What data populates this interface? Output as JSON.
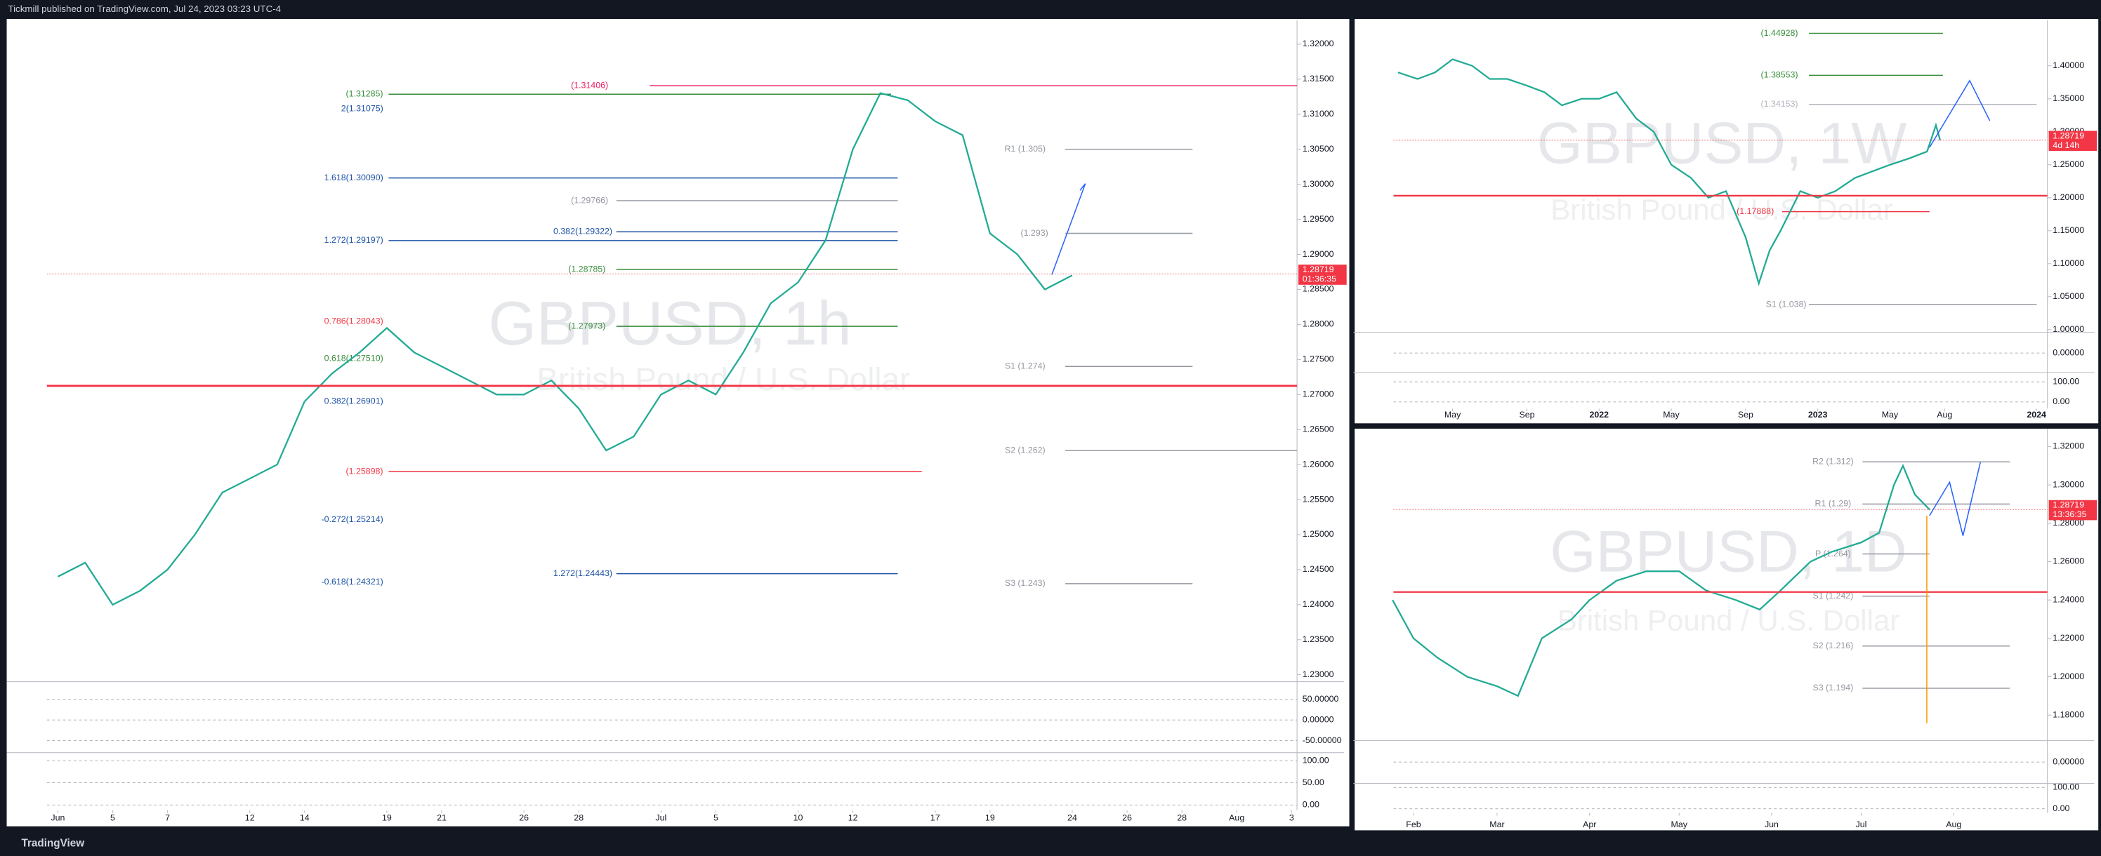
{
  "header": {
    "title": "Tickmill published on TradingView.com, Jul 24, 2023 03:23 UTC-4"
  },
  "footer": {
    "brand": "TradingView"
  },
  "chart_data": [
    {
      "type": "line",
      "title": "GBPUSD, 1h",
      "subtitle": "British Pound / U.S. Dollar",
      "color": "#22ab94",
      "x": [
        0,
        1,
        2,
        3,
        4,
        5,
        6,
        7,
        8,
        9,
        10,
        11,
        12,
        13,
        14,
        15,
        16,
        17,
        18,
        19,
        20,
        21,
        22,
        23,
        24,
        25,
        26,
        27,
        28,
        29,
        30,
        31,
        32,
        33,
        34,
        35,
        36,
        37
      ],
      "values": [
        1.244,
        1.246,
        1.24,
        1.242,
        1.245,
        1.25,
        1.256,
        1.258,
        1.26,
        1.269,
        1.273,
        1.276,
        1.2795,
        1.276,
        1.274,
        1.272,
        1.27,
        1.27,
        1.272,
        1.268,
        1.262,
        1.264,
        1.27,
        1.272,
        1.27,
        1.276,
        1.283,
        1.286,
        1.292,
        1.305,
        1.313,
        1.312,
        1.309,
        1.307,
        1.293,
        1.29,
        1.285,
        1.287
      ],
      "xlim": [
        -0.4,
        45.2
      ],
      "xticks": [
        {
          "value": 0,
          "label": "Jun"
        },
        {
          "value": 2,
          "label": "5"
        },
        {
          "value": 4,
          "label": "7"
        },
        {
          "value": 7,
          "label": "12"
        },
        {
          "value": 9,
          "label": "14"
        },
        {
          "value": 12,
          "label": "19"
        },
        {
          "value": 14,
          "label": "21"
        },
        {
          "value": 17,
          "label": "26"
        },
        {
          "value": 19,
          "label": "28"
        },
        {
          "value": 22,
          "label": "Jul"
        },
        {
          "value": 24,
          "label": "5"
        },
        {
          "value": 27,
          "label": "10"
        },
        {
          "value": 29,
          "label": "12"
        },
        {
          "value": 32,
          "label": "17"
        },
        {
          "value": 34,
          "label": "19"
        },
        {
          "value": 37,
          "label": "24"
        },
        {
          "value": 39,
          "label": "26"
        },
        {
          "value": 41,
          "label": "28"
        },
        {
          "value": 43,
          "label": "Aug"
        },
        {
          "value": 45,
          "label": "3"
        }
      ],
      "ylim": [
        1.2292,
        1.3234
      ],
      "yticks": [
        {
          "value": 1.32,
          "label": "1.32000"
        },
        {
          "value": 1.315,
          "label": "1.31500"
        },
        {
          "value": 1.31,
          "label": "1.31000"
        },
        {
          "value": 1.305,
          "label": "1.30500"
        },
        {
          "value": 1.3,
          "label": "1.30000"
        },
        {
          "value": 1.295,
          "label": "1.29500"
        },
        {
          "value": 1.29,
          "label": "1.29000"
        },
        {
          "value": 1.285,
          "label": "1.28500"
        },
        {
          "value": 1.28,
          "label": "1.28000"
        },
        {
          "value": 1.275,
          "label": "1.27500"
        },
        {
          "value": 1.27,
          "label": "1.27000"
        },
        {
          "value": 1.265,
          "label": "1.26500"
        },
        {
          "value": 1.26,
          "label": "1.26000"
        },
        {
          "value": 1.255,
          "label": "1.25500"
        },
        {
          "value": 1.25,
          "label": "1.25000"
        },
        {
          "value": 1.245,
          "label": "1.24500"
        },
        {
          "value": 1.24,
          "label": "1.24000"
        },
        {
          "value": 1.235,
          "label": "1.23500"
        },
        {
          "value": 1.23,
          "label": "1.23000"
        }
      ],
      "price_label": {
        "value": 1.28719,
        "countdown": "01:36:35"
      },
      "levels": [
        {
          "label": "(1.31406)",
          "value": 1.31406,
          "color": "#e91e63"
        },
        {
          "label": "(1.31285)",
          "value": 1.31285,
          "color": "#388e3c"
        },
        {
          "label": "2(1.31075)",
          "value": 1.31075,
          "color": "#1e53a6"
        },
        {
          "label": "1.618(1.30090)",
          "value": 1.3009,
          "color": "#1e53a6"
        },
        {
          "label": "R1 (1.305)",
          "value": 1.305,
          "color": "#9598a1"
        },
        {
          "label": "(1.29766)",
          "value": 1.29766,
          "color": "#9598a1"
        },
        {
          "label": "0.382(1.29322)",
          "value": 1.29322,
          "color": "#1e53a6"
        },
        {
          "label": "1.272(1.29197)",
          "value": 1.29197,
          "color": "#1e53a6"
        },
        {
          "label": "(1.293)",
          "value": 1.293,
          "color": "#9598a1"
        },
        {
          "label": "(1.28785)",
          "value": 1.28785,
          "color": "#388e3c"
        },
        {
          "label": "0.786(1.28043)",
          "value": 1.28043,
          "color": "#f23645"
        },
        {
          "label": "(1.27973)",
          "value": 1.27973,
          "color": "#388e3c"
        },
        {
          "label": "S1 (1.274)",
          "value": 1.274,
          "color": "#9598a1"
        },
        {
          "label": "0.618(1.27510)",
          "value": 1.2751,
          "color": "#388e3c"
        },
        {
          "label": "0.382(1.26901)",
          "value": 1.26901,
          "color": "#1e53a6"
        },
        {
          "label": "(1.25898)",
          "value": 1.25898,
          "color": "#f23645"
        },
        {
          "label": "S2 (1.262)",
          "value": 1.262,
          "color": "#9598a1"
        },
        {
          "label": "-0.272(1.25214)",
          "value": 1.25214,
          "color": "#1e53a6"
        },
        {
          "label": "1.272(1.24443)",
          "value": 1.24443,
          "color": "#1e53a6"
        },
        {
          "label": "-0.618(1.24321)",
          "value": 1.24321,
          "color": "#1e53a6"
        },
        {
          "label": "S3 (1.243)",
          "value": 1.243,
          "color": "#9598a1"
        }
      ],
      "indicators": [
        {
          "ylim": [
            -79,
            89
          ],
          "yticks": [
            {
              "value": 50,
              "label": "50.00000"
            },
            {
              "value": 0,
              "label": "0.00000"
            },
            {
              "value": -50,
              "label": "-50.00000"
            }
          ]
        },
        {
          "ylim": [
            -12,
            115
          ],
          "yticks": [
            {
              "value": 100,
              "label": "100.00"
            },
            {
              "value": 50,
              "label": "50.00"
            },
            {
              "value": 0,
              "label": "0.00"
            }
          ]
        }
      ]
    },
    {
      "type": "line",
      "title": "GBPUSD, 1W",
      "subtitle": "British Pound / U.S. Dollar",
      "color": "#22ab94",
      "x": [
        2021.08,
        2021.17,
        2021.25,
        2021.33,
        2021.42,
        2021.5,
        2021.58,
        2021.67,
        2021.75,
        2021.83,
        2021.92,
        2022,
        2022.08,
        2022.17,
        2022.25,
        2022.33,
        2022.42,
        2022.5,
        2022.58,
        2022.67,
        2022.73,
        2022.78,
        2022.83,
        2022.92,
        2023,
        2023.08,
        2023.17,
        2023.25,
        2023.33,
        2023.42,
        2023.5,
        2023.54,
        2023.56
      ],
      "values": [
        1.39,
        1.38,
        1.39,
        1.41,
        1.4,
        1.38,
        1.38,
        1.37,
        1.36,
        1.34,
        1.35,
        1.35,
        1.36,
        1.32,
        1.3,
        1.25,
        1.23,
        1.2,
        1.21,
        1.14,
        1.07,
        1.12,
        1.15,
        1.21,
        1.2,
        1.21,
        1.23,
        1.24,
        1.25,
        1.26,
        1.27,
        1.31,
        1.287
      ],
      "xlim": [
        2021.06,
        2024.05
      ],
      "xticks": [
        {
          "value": 2021.33,
          "label": "May"
        },
        {
          "value": 2021.67,
          "label": "Sep"
        },
        2022,
        {
          "value": 2022.33,
          "label": "May"
        },
        {
          "value": 2022.67,
          "label": "Sep"
        },
        2023,
        {
          "value": 2023.33,
          "label": "May"
        },
        {
          "value": 2023.58,
          "label": "Aug"
        },
        2024
      ],
      "ylim": [
        0.996,
        1.469
      ],
      "yticks": [
        {
          "value": 1.4,
          "label": "1.40000"
        },
        {
          "value": 1.35,
          "label": "1.35000"
        },
        {
          "value": 1.3,
          "label": "1.30000"
        },
        {
          "value": 1.25,
          "label": "1.25000"
        },
        {
          "value": 1.2,
          "label": "1.20000"
        },
        {
          "value": 1.15,
          "label": "1.15000"
        },
        {
          "value": 1.1,
          "label": "1.10000"
        },
        {
          "value": 1.05,
          "label": "1.05000"
        },
        {
          "value": 1,
          "label": "1.00000"
        }
      ],
      "price_label": {
        "value": 1.28719,
        "countdown": "4d 14h"
      },
      "levels": [
        {
          "label": "(1.44928)",
          "value": 1.44928,
          "color": "#388e3c"
        },
        {
          "label": "(1.38553)",
          "value": 1.38553,
          "color": "#388e3c"
        },
        {
          "label": "(1.34153)",
          "value": 1.34153,
          "color": "#b2b5be"
        },
        {
          "label": "(1.17888)",
          "value": 1.17888,
          "color": "#f23645"
        },
        {
          "label": "S1 (1.038)",
          "value": 1.038,
          "color": "#9598a1"
        }
      ],
      "indicators": [
        {
          "ylim": [
            -0.06,
            0.06
          ],
          "yticks": [
            {
              "value": 0,
              "label": "0.00000"
            }
          ]
        },
        {
          "ylim": [
            -33,
            140
          ],
          "yticks": [
            {
              "value": 100,
              "label": "100.00"
            },
            {
              "value": 0,
              "label": "0.00"
            }
          ]
        }
      ]
    },
    {
      "type": "line",
      "title": "GBPUSD, 1D",
      "subtitle": "British Pound / U.S. Dollar",
      "color": "#22ab94",
      "x": [
        25,
        32,
        40,
        50,
        60,
        67,
        75,
        85,
        91,
        100,
        110,
        121,
        130,
        140,
        148,
        155,
        165,
        172,
        182,
        188,
        193,
        196,
        200,
        205
      ],
      "values": [
        1.24,
        1.22,
        1.21,
        1.2,
        1.195,
        1.19,
        1.22,
        1.23,
        1.24,
        1.25,
        1.255,
        1.255,
        1.245,
        1.24,
        1.235,
        1.245,
        1.26,
        1.265,
        1.27,
        1.275,
        1.3,
        1.31,
        1.295,
        1.287
      ],
      "xlim": [
        25.3,
        244.4
      ],
      "xticks": [
        {
          "value": 32,
          "label": "Feb"
        },
        {
          "value": 60,
          "label": "Mar"
        },
        {
          "value": 91,
          "label": "Apr"
        },
        {
          "value": 121,
          "label": "May"
        },
        {
          "value": 152,
          "label": "Jun"
        },
        {
          "value": 182,
          "label": "Jul"
        },
        {
          "value": 213,
          "label": "Aug"
        }
      ],
      "ylim": [
        1.1674,
        1.3293
      ],
      "yticks": [
        {
          "value": 1.32,
          "label": "1.32000"
        },
        {
          "value": 1.3,
          "label": "1.30000"
        },
        {
          "value": 1.28,
          "label": "1.28000"
        },
        {
          "value": 1.26,
          "label": "1.26000"
        },
        {
          "value": 1.24,
          "label": "1.24000"
        },
        {
          "value": 1.22,
          "label": "1.22000"
        },
        {
          "value": 1.2,
          "label": "1.20000"
        },
        {
          "value": 1.18,
          "label": "1.18000"
        }
      ],
      "price_label": {
        "value": 1.28719,
        "countdown": "13:36:35"
      },
      "levels": [
        {
          "label": "R2 (1.312)",
          "value": 1.312,
          "color": "#9598a1"
        },
        {
          "label": "R1 (1.29)",
          "value": 1.29,
          "color": "#9598a1"
        },
        {
          "label": "P (1.264)",
          "value": 1.264,
          "color": "#9598a1"
        },
        {
          "label": "S1 (1.242)",
          "value": 1.242,
          "color": "#9598a1"
        },
        {
          "label": "S2 (1.216)",
          "value": 1.216,
          "color": "#9598a1"
        },
        {
          "label": "S3 (1.194)",
          "value": 1.194,
          "color": "#9598a1"
        }
      ],
      "indicators": [
        {
          "ylim": [
            -0.06,
            0.06
          ],
          "yticks": [
            {
              "value": 0,
              "label": "0.00000"
            }
          ]
        },
        {
          "ylim": [
            -19,
            112
          ],
          "yticks": [
            {
              "value": 100,
              "label": "100.00"
            },
            {
              "value": 0,
              "label": "0.00"
            }
          ]
        }
      ]
    }
  ]
}
